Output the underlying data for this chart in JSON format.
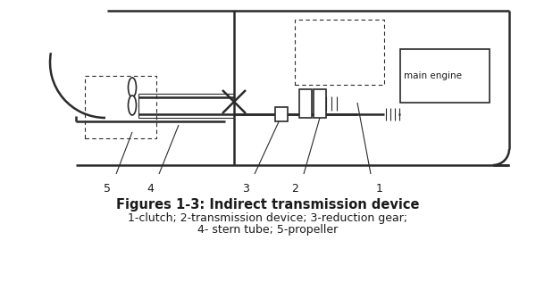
{
  "title": "Figures 1-3: Indirect transmission device",
  "caption_line1": "1-clutch; 2-transmission device; 3-reduction gear;",
  "caption_line2": "4- stern tube; 5-propeller",
  "background_color": "#ffffff",
  "title_fontsize": 10.5,
  "caption_fontsize": 9,
  "fig_width": 6.0,
  "fig_height": 3.16,
  "dpi": 100,
  "line_color": "#2a2a2a",
  "label_color": "#1a1a1a"
}
